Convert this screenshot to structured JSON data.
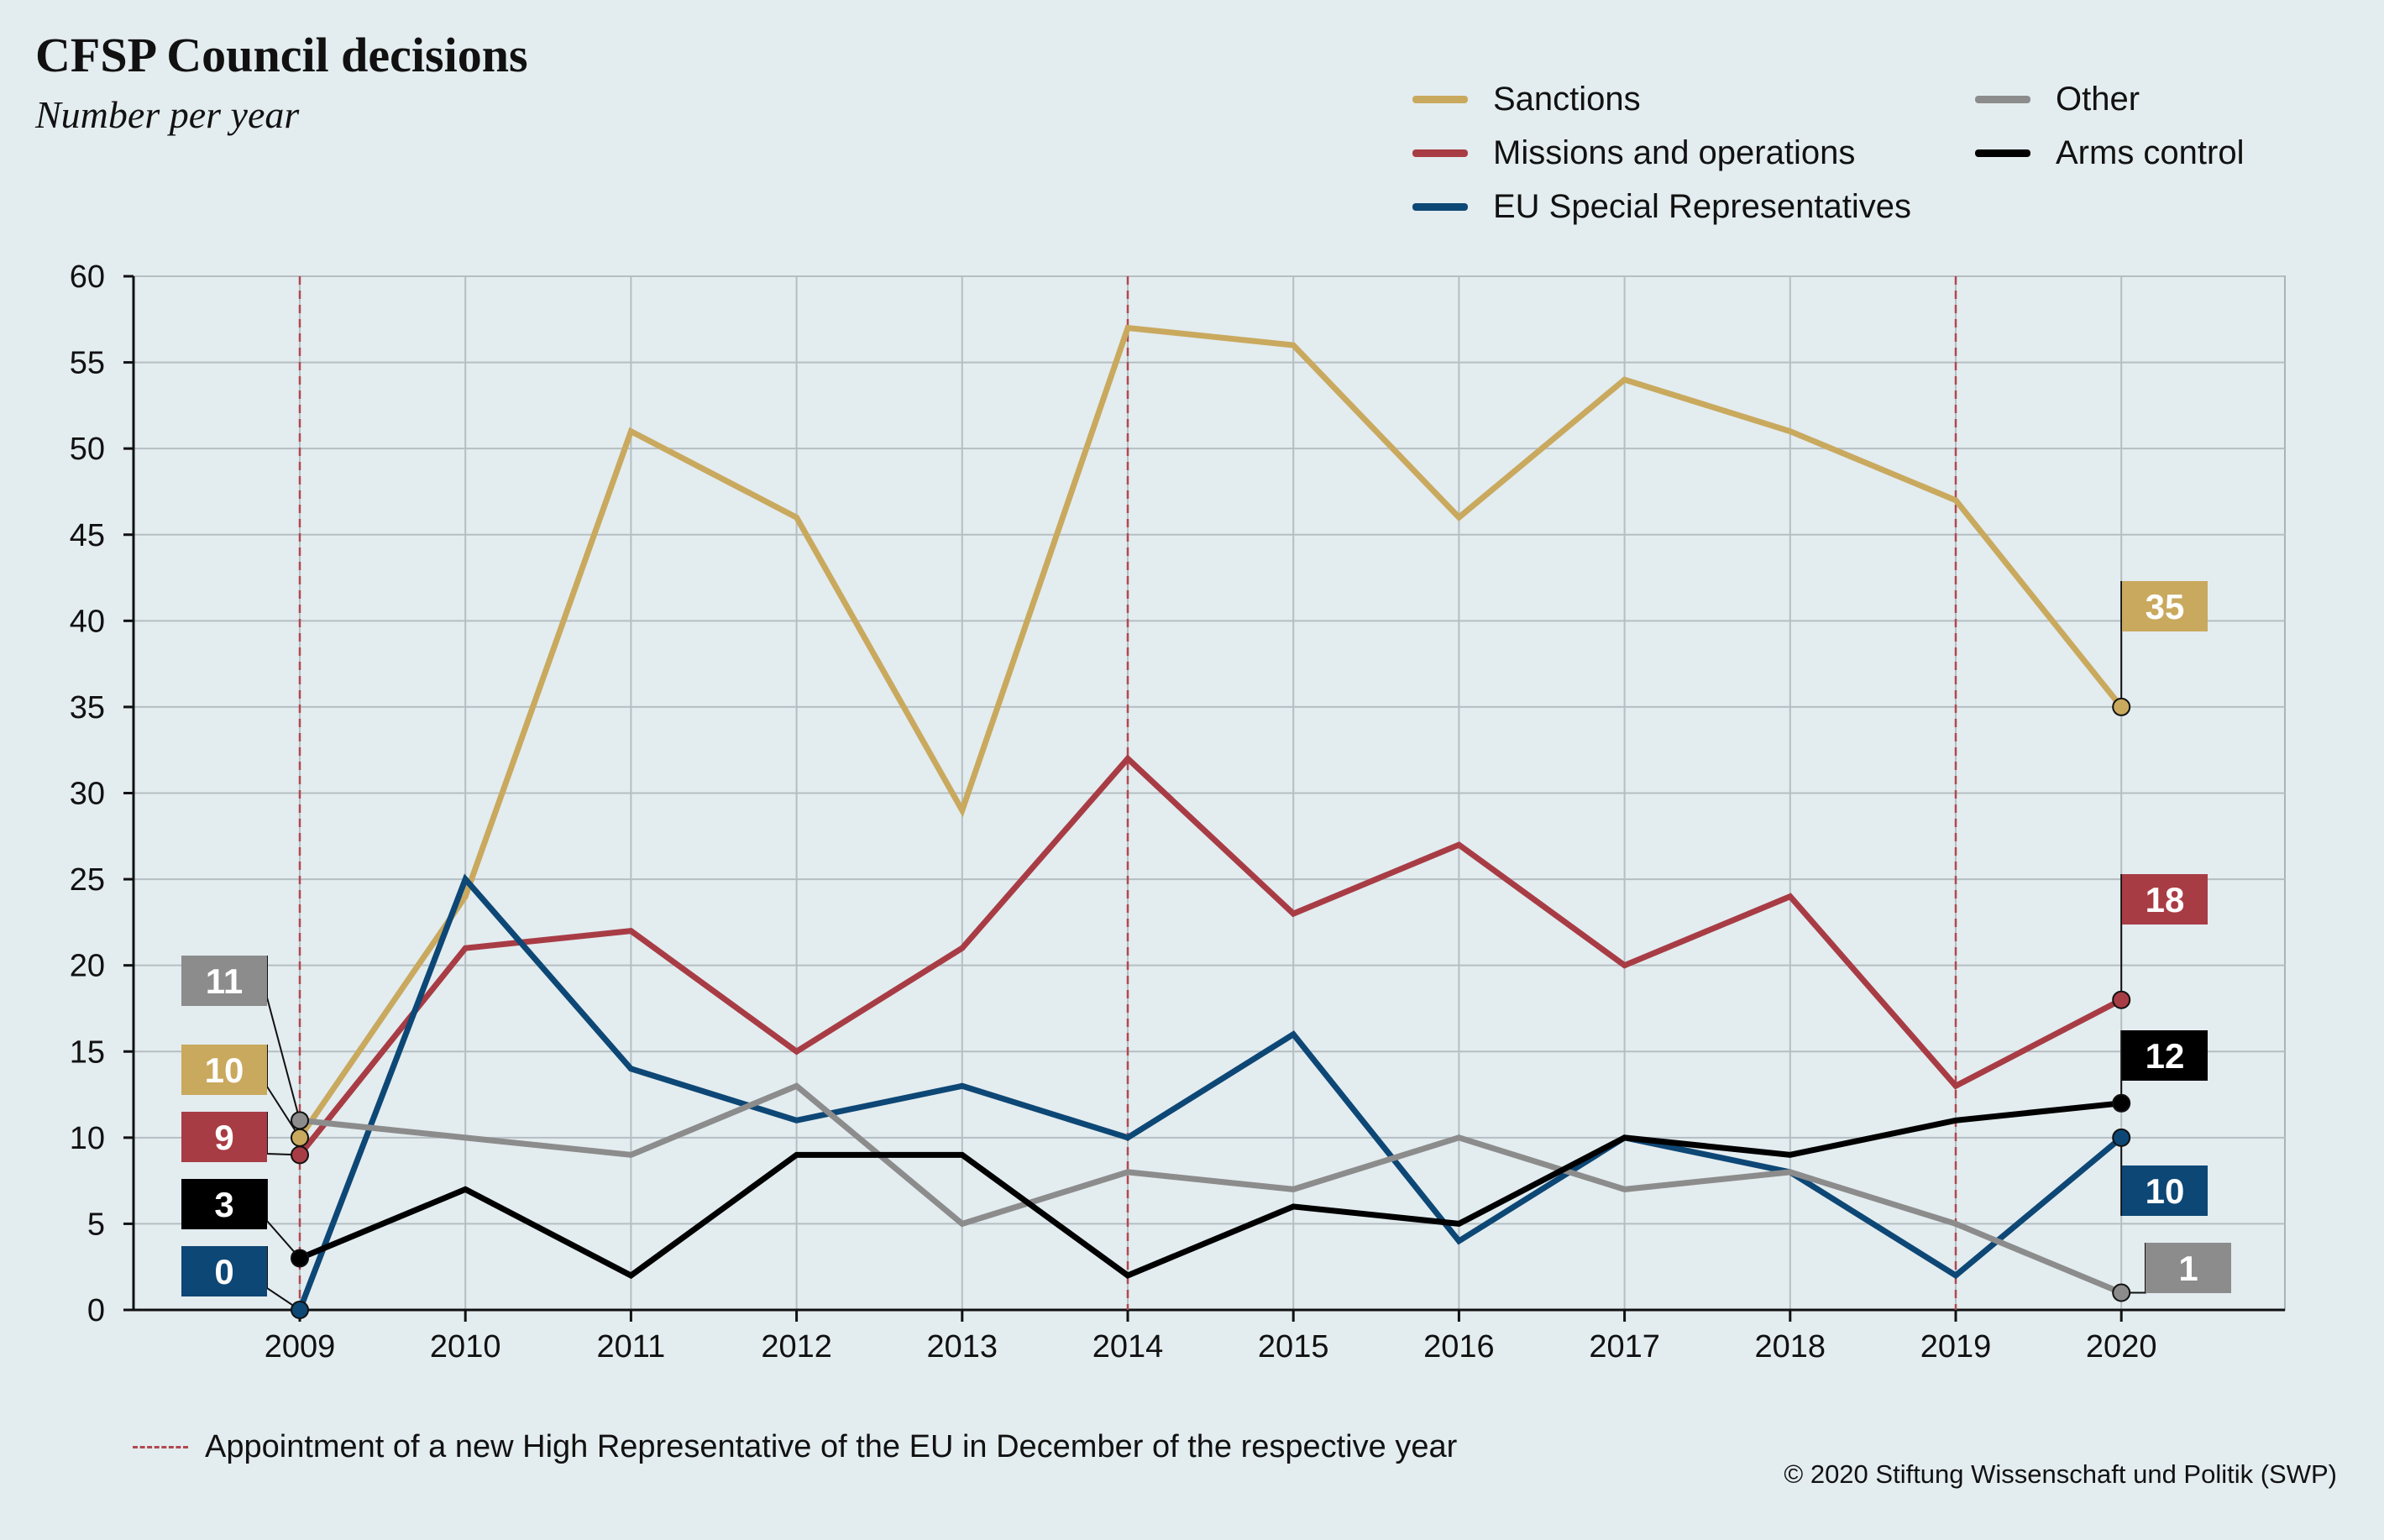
{
  "header": {
    "title": "CFSP Council decisions",
    "subtitle": "Number per year"
  },
  "legend": [
    {
      "label": "Sanctions",
      "color": "#c9a95e"
    },
    {
      "label": "Missions and operations",
      "color": "#a83c45"
    },
    {
      "label": "EU Special Representatives",
      "color": "#0d4775"
    },
    {
      "label": "Other",
      "color": "#8c8c8c"
    },
    {
      "label": "Arms control",
      "color": "#000000"
    }
  ],
  "footnote": "Appointment of a new High Representative of the EU in December of the respective year",
  "copyright": "© 2020 Stiftung Wissenschaft und Politik (SWP)",
  "chart_data": {
    "type": "line",
    "title": "CFSP Council decisions",
    "subtitle": "Number per year",
    "x": [
      2009,
      2010,
      2011,
      2012,
      2013,
      2014,
      2015,
      2016,
      2017,
      2018,
      2019,
      2020
    ],
    "ylim": [
      0,
      60
    ],
    "yticks": [
      0,
      5,
      10,
      15,
      20,
      25,
      30,
      35,
      40,
      45,
      50,
      55,
      60
    ],
    "grid": true,
    "legend_position": "top-right",
    "reference_lines_x": [
      2009,
      2014,
      2019
    ],
    "series": [
      {
        "name": "Sanctions",
        "color": "#c9a95e",
        "values": [
          10,
          24,
          51,
          46,
          29,
          57,
          56,
          46,
          54,
          51,
          47,
          35
        ],
        "start_label": "10",
        "end_label": "35"
      },
      {
        "name": "Missions and operations",
        "color": "#a83c45",
        "values": [
          9,
          21,
          22,
          15,
          21,
          32,
          23,
          27,
          20,
          24,
          13,
          18
        ],
        "start_label": "9",
        "end_label": "18"
      },
      {
        "name": "EU Special Representatives",
        "color": "#0d4775",
        "values": [
          0,
          25,
          14,
          11,
          13,
          10,
          16,
          4,
          10,
          8,
          2,
          10
        ],
        "start_label": "0",
        "end_label": "10"
      },
      {
        "name": "Other",
        "color": "#8c8c8c",
        "values": [
          11,
          10,
          9,
          13,
          5,
          8,
          7,
          10,
          7,
          8,
          5,
          1
        ],
        "start_label": "11",
        "end_label": "1"
      },
      {
        "name": "Arms control",
        "color": "#000000",
        "values": [
          3,
          7,
          2,
          9,
          9,
          2,
          6,
          5,
          10,
          9,
          11,
          12
        ],
        "start_label": "3",
        "end_label": "12"
      }
    ]
  }
}
